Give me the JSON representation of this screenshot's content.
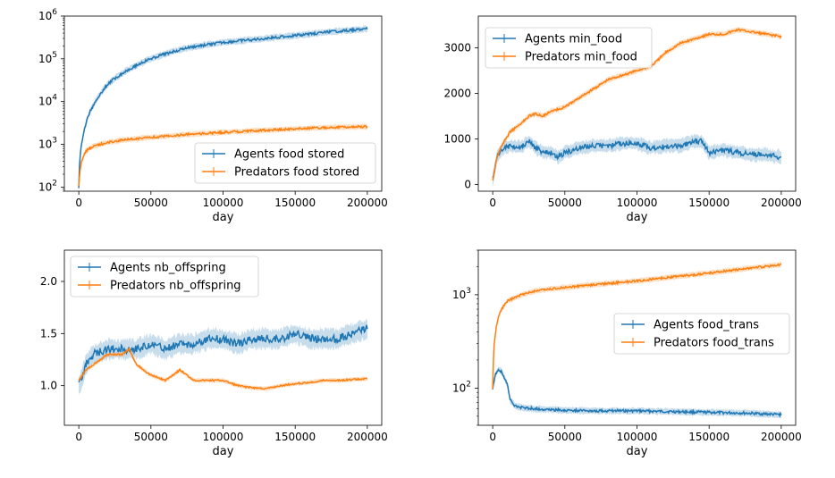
{
  "colors": {
    "agents": "#1f77b4",
    "predators": "#ff7f0e"
  },
  "chart_data": [
    {
      "type": "line",
      "yscale": "log",
      "xlabel": "day",
      "ylabel": "",
      "xlim": [
        -10000,
        210000
      ],
      "ylim": [
        80,
        1000000
      ],
      "xticks": [
        0,
        50000,
        100000,
        150000,
        200000
      ],
      "xtick_labels": [
        "0",
        "50000",
        "100000",
        "150000",
        "200000"
      ],
      "yticks": [
        100,
        1000,
        10000,
        100000,
        1000000
      ],
      "ytick_labels": [
        "10^2",
        "10^3",
        "10^4",
        "10^5",
        "10^6"
      ],
      "legend_position": "lower right",
      "series": [
        {
          "name": "Agents food stored",
          "color": "#1f77b4",
          "x": [
            0,
            2000,
            5000,
            10000,
            15000,
            20000,
            30000,
            40000,
            50000,
            60000,
            75000,
            100000,
            125000,
            150000,
            175000,
            200000
          ],
          "y": [
            100,
            1000,
            3000,
            8000,
            15000,
            25000,
            45000,
            70000,
            100000,
            130000,
            180000,
            240000,
            290000,
            350000,
            430000,
            500000
          ]
        },
        {
          "name": "Predators food stored",
          "color": "#ff7f0e",
          "x": [
            0,
            2000,
            5000,
            10000,
            20000,
            30000,
            50000,
            75000,
            100000,
            125000,
            150000,
            175000,
            200000
          ],
          "y": [
            100,
            400,
            700,
            900,
            1100,
            1250,
            1450,
            1700,
            1900,
            2100,
            2300,
            2500,
            2600
          ]
        }
      ]
    },
    {
      "type": "line",
      "xlabel": "day",
      "ylabel": "",
      "xlim": [
        -10000,
        210000
      ],
      "ylim": [
        -150,
        3700
      ],
      "xticks": [
        0,
        50000,
        100000,
        150000,
        200000
      ],
      "xtick_labels": [
        "0",
        "50000",
        "100000",
        "150000",
        "200000"
      ],
      "yticks": [
        0,
        1000,
        2000,
        3000
      ],
      "ytick_labels": [
        "0",
        "1000",
        "2000",
        "3000"
      ],
      "legend_position": "upper left",
      "series": [
        {
          "name": "Agents min_food",
          "color": "#1f77b4",
          "x": [
            0,
            3000,
            7000,
            12000,
            20000,
            25000,
            30000,
            35000,
            40000,
            45000,
            50000,
            60000,
            70000,
            80000,
            90000,
            100000,
            110000,
            120000,
            130000,
            140000,
            145000,
            150000,
            160000,
            170000,
            180000,
            190000,
            200000
          ],
          "y": [
            100,
            600,
            800,
            850,
            820,
            950,
            800,
            700,
            700,
            600,
            700,
            800,
            850,
            850,
            900,
            900,
            800,
            850,
            850,
            950,
            950,
            700,
            750,
            700,
            650,
            650,
            600
          ]
        },
        {
          "name": "Predators min_food",
          "color": "#ff7f0e",
          "x": [
            0,
            3000,
            7000,
            12000,
            20000,
            25000,
            30000,
            35000,
            40000,
            50000,
            60000,
            70000,
            80000,
            90000,
            100000,
            110000,
            120000,
            130000,
            140000,
            150000,
            160000,
            170000,
            180000,
            190000,
            200000
          ],
          "y": [
            100,
            600,
            900,
            1150,
            1350,
            1500,
            1550,
            1500,
            1600,
            1700,
            1900,
            2100,
            2300,
            2400,
            2500,
            2600,
            2900,
            3100,
            3200,
            3300,
            3300,
            3400,
            3350,
            3300,
            3250
          ]
        }
      ]
    },
    {
      "type": "line",
      "xlabel": "day",
      "ylabel": "",
      "xlim": [
        -10000,
        210000
      ],
      "ylim": [
        0.62,
        2.3
      ],
      "xticks": [
        0,
        50000,
        100000,
        150000,
        200000
      ],
      "xtick_labels": [
        "0",
        "50000",
        "100000",
        "150000",
        "200000"
      ],
      "yticks": [
        1.0,
        1.5,
        2.0
      ],
      "ytick_labels": [
        "1.0",
        "1.5",
        "2.0"
      ],
      "legend_position": "upper left",
      "series": [
        {
          "name": "Agents nb_offspring",
          "color": "#1f77b4",
          "x": [
            0,
            5000,
            10000,
            20000,
            30000,
            40000,
            50000,
            60000,
            70000,
            80000,
            90000,
            100000,
            110000,
            120000,
            130000,
            140000,
            150000,
            160000,
            170000,
            180000,
            190000,
            200000
          ],
          "y": [
            1.0,
            1.2,
            1.3,
            1.35,
            1.35,
            1.35,
            1.4,
            1.35,
            1.4,
            1.4,
            1.45,
            1.45,
            1.4,
            1.45,
            1.45,
            1.45,
            1.5,
            1.45,
            1.45,
            1.45,
            1.5,
            1.55
          ]
        },
        {
          "name": "Predators nb_offspring",
          "color": "#ff7f0e",
          "x": [
            0,
            5000,
            10000,
            20000,
            30000,
            35000,
            40000,
            50000,
            60000,
            70000,
            80000,
            90000,
            100000,
            110000,
            120000,
            130000,
            140000,
            150000,
            160000,
            170000,
            180000,
            190000,
            200000
          ],
          "y": [
            1.05,
            1.15,
            1.2,
            1.3,
            1.3,
            1.35,
            1.2,
            1.1,
            1.05,
            1.15,
            1.05,
            1.05,
            1.05,
            1.0,
            0.98,
            0.97,
            1.0,
            1.02,
            1.03,
            1.05,
            1.05,
            1.06,
            1.07
          ]
        }
      ]
    },
    {
      "type": "line",
      "yscale": "log",
      "xlabel": "day",
      "ylabel": "",
      "xlim": [
        -10000,
        210000
      ],
      "ylim": [
        40,
        3000
      ],
      "xticks": [
        0,
        50000,
        100000,
        150000,
        200000
      ],
      "xtick_labels": [
        "0",
        "50000",
        "100000",
        "150000",
        "200000"
      ],
      "yticks": [
        100,
        1000
      ],
      "ytick_labels": [
        "10^2",
        "10^3"
      ],
      "legend_position": "center right",
      "series": [
        {
          "name": "Agents food_trans",
          "color": "#1f77b4",
          "x": [
            0,
            2000,
            4000,
            6000,
            8000,
            10000,
            12000,
            15000,
            20000,
            30000,
            50000,
            75000,
            100000,
            125000,
            150000,
            175000,
            200000
          ],
          "y": [
            100,
            140,
            160,
            150,
            130,
            110,
            75,
            65,
            62,
            60,
            58,
            57,
            57,
            56,
            55,
            54,
            52
          ]
        },
        {
          "name": "Predators food_trans",
          "color": "#ff7f0e",
          "x": [
            0,
            1000,
            3000,
            5000,
            10000,
            20000,
            30000,
            50000,
            75000,
            100000,
            125000,
            150000,
            175000,
            200000
          ],
          "y": [
            100,
            300,
            500,
            650,
            850,
            1000,
            1100,
            1200,
            1300,
            1400,
            1550,
            1700,
            1900,
            2100
          ]
        }
      ]
    }
  ]
}
